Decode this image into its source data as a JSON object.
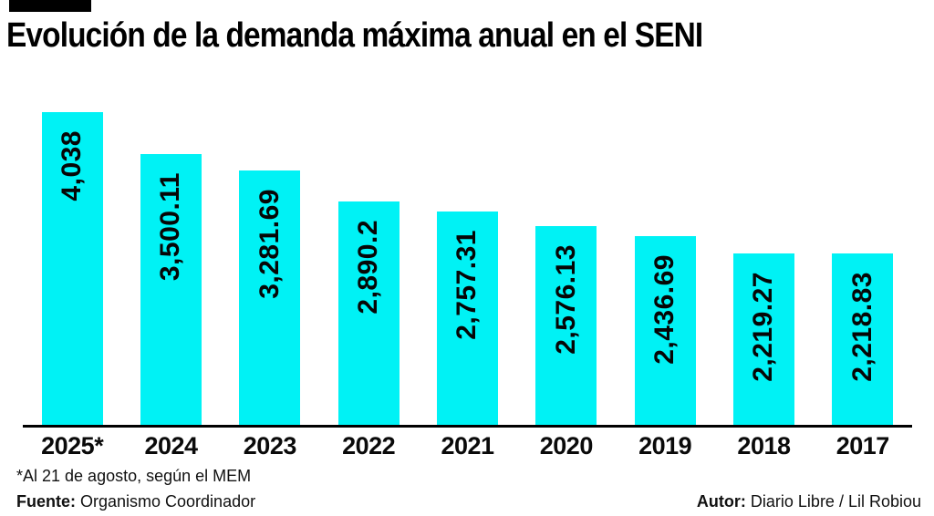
{
  "chart_data": {
    "type": "bar",
    "title": "Evolución de la demanda máxima anual en el SENI",
    "categories": [
      "2025*",
      "2024",
      "2023",
      "2022",
      "2021",
      "2020",
      "2019",
      "2018",
      "2017"
    ],
    "values": [
      4038,
      3500.11,
      3281.69,
      2890.2,
      2757.31,
      2576.13,
      2436.69,
      2219.27,
      2218.83
    ],
    "value_labels": [
      "4,038",
      "3,500.11",
      "3,281.69",
      "2,890.2",
      "2,757.31",
      "2,576.13",
      "2,436.69",
      "2,219.27",
      "2,218.83"
    ],
    "xlabel": "",
    "ylabel": "",
    "ylim": [
      0,
      4038
    ],
    "grid": false,
    "legend": false,
    "bar_color": "#00F2F5",
    "axis_color": "#000000",
    "value_label_orientation": "rotated-90-bottom-to-top"
  },
  "footer": {
    "note": "*Al 21 de agosto, según el MEM",
    "source_label": "Fuente:",
    "source": " Organismo Coordinador",
    "author_label": "Autor:",
    "author": " Diario Libre / Lil Robiou"
  }
}
